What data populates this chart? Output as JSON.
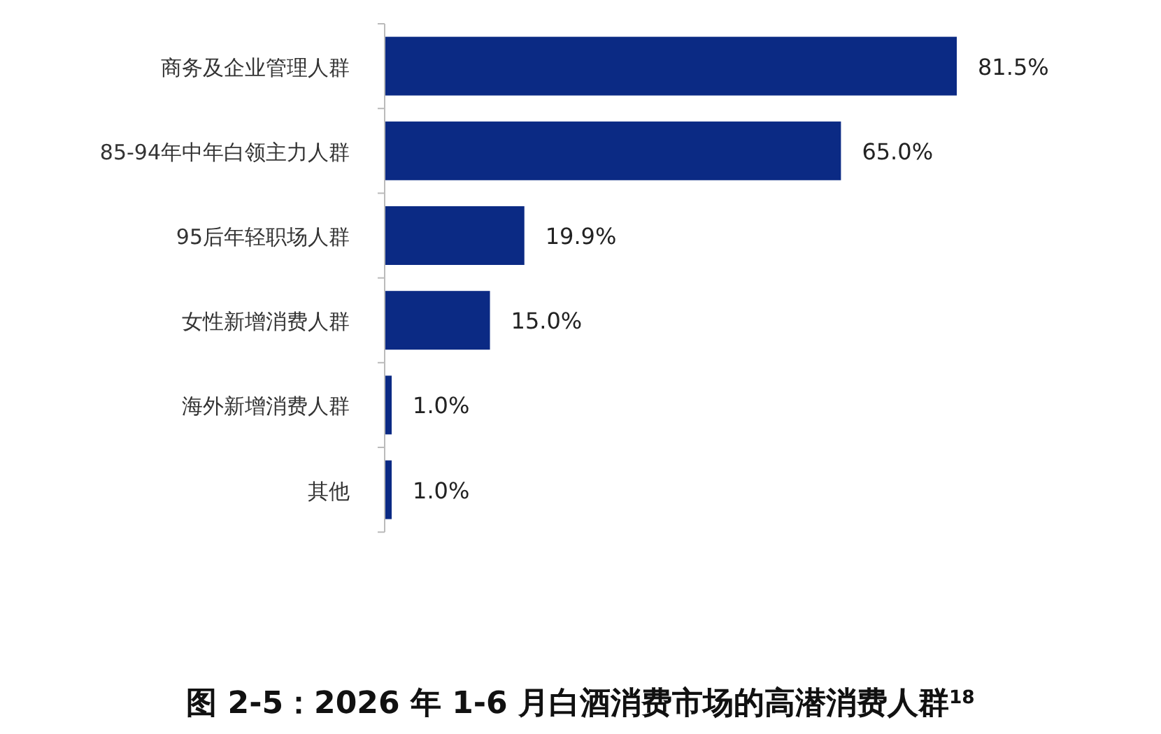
{
  "chart_data": {
    "type": "bar",
    "orientation": "horizontal",
    "title": "图 2-5：2026 年 1-6 月白酒消费市场的高潜消费人群$^{18}$",
    "categories": [
      "商务及企业管理人群",
      "85-94年中年白领主力人群",
      "95后年轻职场人群",
      "女性新增消费人群",
      "海外新增消费人群",
      "其他"
    ],
    "values": [
      81.5,
      65.0,
      19.9,
      15.0,
      1.0,
      1.0
    ],
    "value_labels": [
      "81.5%",
      "65.0%",
      "19.9%",
      "15.0%",
      "1.0%",
      "1.0%"
    ],
    "color": "#0b2a84"
  }
}
